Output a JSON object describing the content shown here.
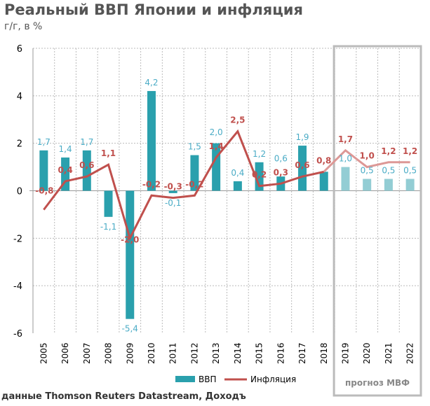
{
  "title": "Реальный ВВП Японии и инфляция",
  "subtitle": "г/г, в %",
  "source": "данные Thomson Reuters Datastream, Доходъ",
  "forecast_label": "прогноз МВФ",
  "colors": {
    "gdp": "#2aa0ad",
    "gdp_forecast": "#93cdd4",
    "inflation": "#c0504d",
    "inflation_forecast": "#dd9896",
    "gdp_label": "#4bacc6",
    "inflation_label": "#c0504d"
  },
  "chart_data": {
    "type": "bar+line",
    "categories": [
      "2005",
      "2006",
      "2007",
      "2008",
      "2009",
      "2010",
      "2011",
      "2012",
      "2013",
      "2014",
      "2015",
      "2016",
      "2017",
      "2018",
      "2019",
      "2020",
      "2021",
      "2022"
    ],
    "forecast_from": "2019",
    "series": [
      {
        "name": "ВВП",
        "type": "bar",
        "values": [
          1.7,
          1.4,
          1.7,
          -1.1,
          -5.4,
          4.2,
          -0.1,
          1.5,
          2.0,
          0.4,
          1.2,
          0.6,
          1.9,
          0.8,
          1.0,
          0.5,
          0.5,
          0.5
        ],
        "labels": [
          "1,7",
          "1,4",
          "1,7",
          "-1,1",
          "-5,4",
          "4,2",
          "-0,1",
          "1,5",
          "2,0",
          "0,4",
          "1,2",
          "0,6",
          "1,9",
          "",
          "1,0",
          "0,5",
          "0,5",
          "0,5"
        ]
      },
      {
        "name": "Инфляция",
        "type": "line",
        "values": [
          -0.8,
          0.4,
          0.6,
          1.1,
          -2.0,
          -0.2,
          -0.3,
          -0.2,
          1.4,
          2.5,
          0.2,
          0.3,
          0.6,
          0.8,
          1.7,
          1.0,
          1.2,
          1.2
        ],
        "labels": [
          "-0,8",
          "0,4",
          "0,6",
          "1,1",
          "-2,0",
          "-0,2",
          "-0,3",
          "-0,2",
          "1,4",
          "2,5",
          "0,2",
          "0,3",
          "0,6",
          "0,8",
          "1,7",
          "1,0",
          "1,2",
          "1,2"
        ]
      }
    ],
    "ylim": [
      -6,
      6
    ],
    "yticks": [
      "-6",
      "-4",
      "-2",
      "0",
      "2",
      "4",
      "6"
    ],
    "grid": true,
    "legend": "bottom"
  }
}
